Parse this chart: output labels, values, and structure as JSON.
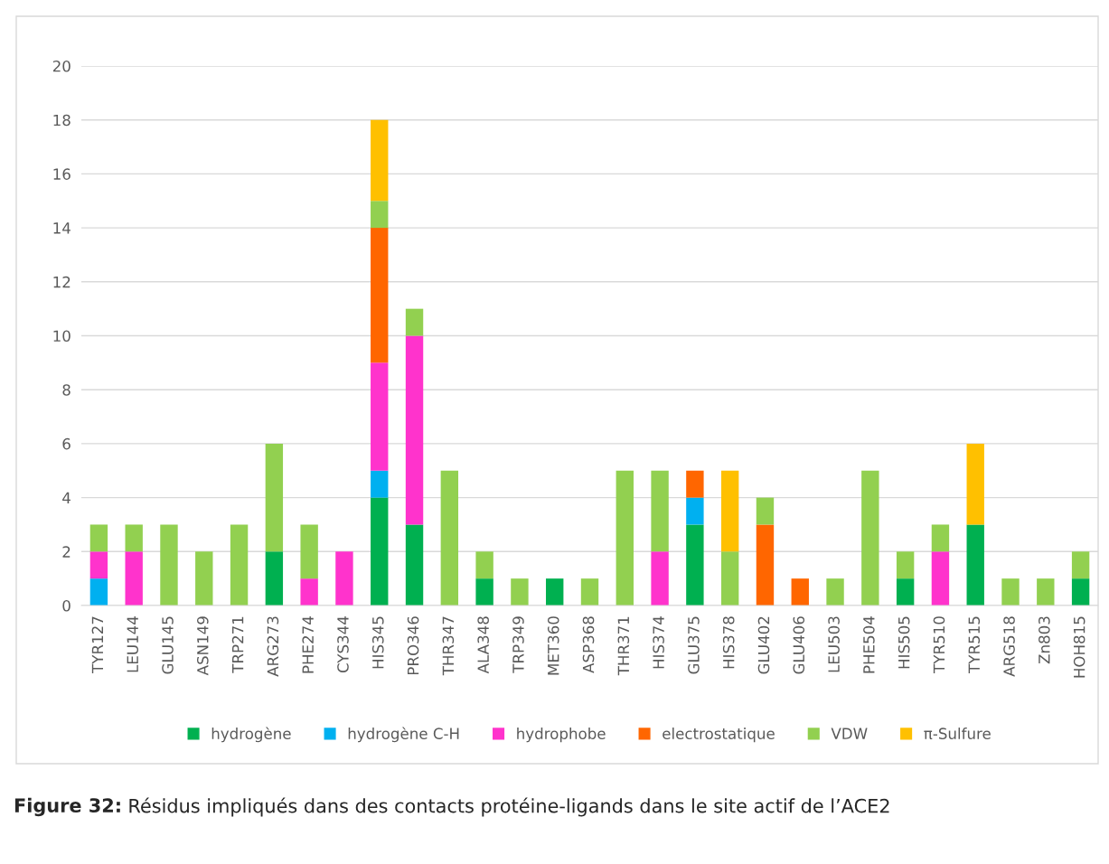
{
  "chart_data": {
    "type": "bar",
    "stacked": true,
    "categories": [
      "TYR127",
      "LEU144",
      "GLU145",
      "ASN149",
      "TRP271",
      "ARG273",
      "PHE274",
      "CYS344",
      "HIS345",
      "PRO346",
      "THR347",
      "ALA348",
      "TRP349",
      "MET360",
      "ASP368",
      "THR371",
      "HIS374",
      "GLU375",
      "HIS378",
      "GLU402",
      "GLU406",
      "LEU503",
      "PHE504",
      "HIS505",
      "TYR510",
      "TYR515",
      "ARG518",
      "Zn803",
      "HOH815"
    ],
    "series": [
      {
        "name": "hydrogène",
        "color": "#00b050",
        "values": [
          null,
          null,
          null,
          null,
          null,
          2,
          null,
          null,
          4,
          3,
          null,
          1,
          null,
          1,
          null,
          null,
          null,
          3,
          null,
          null,
          null,
          null,
          null,
          1,
          null,
          3,
          null,
          null,
          1
        ]
      },
      {
        "name": "hydrogène C-H",
        "color": "#00b0f0",
        "values": [
          1,
          null,
          null,
          null,
          null,
          null,
          null,
          null,
          1,
          null,
          null,
          null,
          null,
          null,
          null,
          null,
          null,
          1,
          null,
          null,
          null,
          null,
          null,
          null,
          null,
          null,
          null,
          null,
          null
        ]
      },
      {
        "name": "hydrophobe",
        "color": "#ff33cc",
        "values": [
          1,
          2,
          null,
          null,
          null,
          null,
          1,
          2,
          4,
          7,
          null,
          null,
          null,
          null,
          null,
          null,
          2,
          null,
          null,
          null,
          null,
          null,
          null,
          null,
          2,
          null,
          null,
          null,
          null
        ]
      },
      {
        "name": "electrostatique",
        "color": "#ff6600",
        "values": [
          null,
          null,
          null,
          null,
          null,
          null,
          null,
          null,
          5,
          null,
          null,
          null,
          null,
          null,
          null,
          null,
          null,
          1,
          null,
          3,
          1,
          null,
          null,
          null,
          null,
          null,
          null,
          null,
          null
        ]
      },
      {
        "name": "VDW",
        "color": "#92d050",
        "values": [
          1,
          1,
          3,
          2,
          3,
          4,
          2,
          null,
          1,
          1,
          5,
          1,
          1,
          null,
          1,
          5,
          3,
          null,
          2,
          1,
          null,
          1,
          5,
          1,
          1,
          null,
          1,
          1,
          1
        ]
      },
      {
        "name": "π-Sulfure",
        "color": "#ffc000",
        "values": [
          null,
          null,
          null,
          null,
          null,
          null,
          null,
          null,
          3,
          null,
          null,
          null,
          null,
          null,
          null,
          null,
          null,
          null,
          3,
          null,
          null,
          null,
          null,
          null,
          null,
          3,
          null,
          null,
          null
        ]
      }
    ],
    "ylim": [
      0,
      20
    ],
    "yticks": [
      0,
      2,
      4,
      6,
      8,
      10,
      12,
      14,
      16,
      18,
      20
    ],
    "grid": "y",
    "legend": "bottom",
    "annotations": [
      "Figure 32:",
      "Résidus impliqués dans des contacts protéine-ligands dans le site actif de l’ACE2"
    ]
  }
}
